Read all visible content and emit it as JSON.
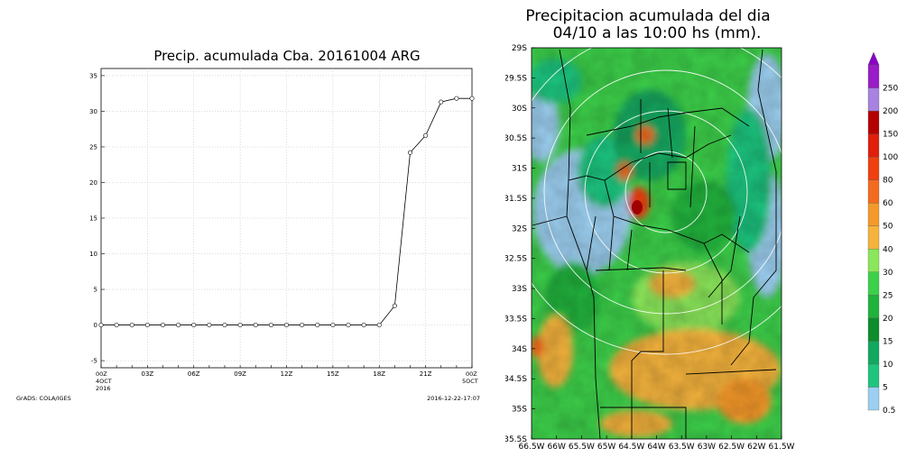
{
  "left_chart": {
    "title": "Precip. acumulada Cba. 20161004 ARG",
    "grads_label": "GrADS: COLA/IGES",
    "timestamp_label": "2016-12-22-17:07",
    "x_start_lines": [
      "00Z",
      "4OCT",
      "2016"
    ],
    "x_end_lines": [
      "00Z",
      "5OCT"
    ]
  },
  "right_map": {
    "title_line1": "Precipitacion acumulada del dia",
    "title_line2": "04/10 a las 10:00 hs (mm)."
  },
  "chart_data": [
    {
      "type": "line",
      "title": "Precip. acumulada Cba. 20161004 ARG",
      "xlabel": "",
      "ylabel": "",
      "x": [
        "00Z",
        "01Z",
        "02Z",
        "03Z",
        "04Z",
        "05Z",
        "06Z",
        "07Z",
        "08Z",
        "09Z",
        "10Z",
        "11Z",
        "12Z",
        "13Z",
        "14Z",
        "15Z",
        "16Z",
        "17Z",
        "18Z",
        "19Z",
        "20Z",
        "21Z",
        "22Z",
        "23Z",
        "00Z"
      ],
      "x_tick_labels": [
        "00Z",
        "03Z",
        "06Z",
        "09Z",
        "12Z",
        "15Z",
        "18Z",
        "21Z",
        "00Z"
      ],
      "series": [
        {
          "values": [
            0,
            0,
            0,
            0,
            0,
            0,
            0,
            0,
            0,
            0,
            0,
            0,
            0,
            0,
            0,
            0,
            0,
            0,
            0,
            2.7,
            24.2,
            26.6,
            31.3,
            31.8,
            31.8
          ]
        }
      ],
      "ylim": [
        -6,
        36
      ],
      "y_ticks": [
        -5,
        0,
        5,
        10,
        15,
        20,
        25,
        30,
        35
      ],
      "grid": true,
      "marker": "circle"
    },
    {
      "type": "heatmap",
      "title": "Precipitacion acumulada del dia 04/10 a las 10:00 hs (mm).",
      "x_tick_labels": [
        "66.5W",
        "66W",
        "65.5W",
        "65W",
        "64.5W",
        "64W",
        "63.5W",
        "63W",
        "62.5W",
        "62W",
        "61.5W"
      ],
      "y_tick_labels": [
        "29S",
        "29.5S",
        "30S",
        "30.5S",
        "31S",
        "31.5S",
        "32S",
        "32.5S",
        "33S",
        "33.5S",
        "34S",
        "34.5S",
        "35S",
        "35.5S"
      ],
      "xlim": [
        -66.5,
        -61.5
      ],
      "ylim": [
        -35.5,
        -29
      ],
      "colorbar": {
        "levels": [
          "0.5",
          "5",
          "10",
          "15",
          "20",
          "25",
          "30",
          "40",
          "50",
          "60",
          "80",
          "100",
          "150",
          "200",
          "250"
        ],
        "colors": [
          "#9ccff0",
          "#1fc47f",
          "#13a860",
          "#0d8d2c",
          "#21b23c",
          "#3dd04a",
          "#8ae65a",
          "#f4b33c",
          "#f5992a",
          "#f46a1e",
          "#f04010",
          "#e01e0c",
          "#b40000",
          "#a882e0",
          "#9a1cc8",
          "#8a00c8"
        ]
      }
    }
  ]
}
